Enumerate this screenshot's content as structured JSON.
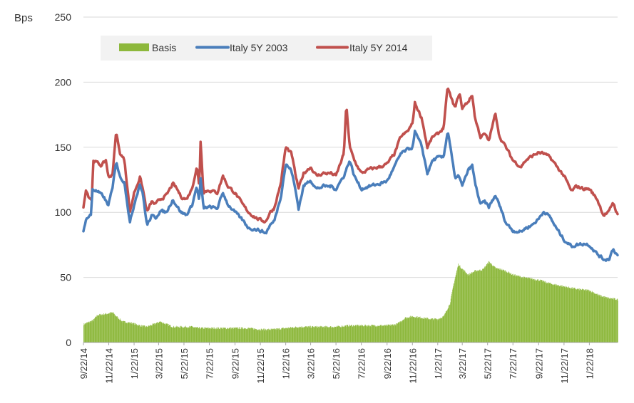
{
  "chart_data": {
    "type": "area",
    "y_unit_label": "Bps",
    "ylim": [
      0,
      250
    ],
    "y_ticks": [
      "0",
      "50",
      "100",
      "150",
      "200",
      "250"
    ],
    "x_tick_labels": [
      "9/22/14",
      "11/22/14",
      "1/22/15",
      "3/22/15",
      "5/22/15",
      "7/22/15",
      "9/22/15",
      "11/22/15",
      "1/22/16",
      "3/22/16",
      "5/22/16",
      "7/22/16",
      "9/22/16",
      "11/22/16",
      "1/22/17",
      "3/22/17",
      "5/22/17",
      "7/22/17",
      "9/22/17",
      "11/22/17",
      "1/22/18"
    ],
    "x_range": [
      "2014-09-22",
      "2018-03-31"
    ],
    "grid": "horizontal",
    "legend_position": "top-left",
    "series": [
      {
        "name": "Basis",
        "type": "bar",
        "color": "#8DB83C",
        "points": [
          [
            "2014-09-22",
            14
          ],
          [
            "2014-10-15",
            17
          ],
          [
            "2014-10-25",
            21
          ],
          [
            "2014-11-15",
            22
          ],
          [
            "2014-12-01",
            23
          ],
          [
            "2014-12-10",
            20
          ],
          [
            "2014-12-25",
            16
          ],
          [
            "2015-01-15",
            15
          ],
          [
            "2015-02-05",
            13
          ],
          [
            "2015-02-20",
            12
          ],
          [
            "2015-03-10",
            14
          ],
          [
            "2015-03-25",
            16
          ],
          [
            "2015-04-10",
            14
          ],
          [
            "2015-04-25",
            12
          ],
          [
            "2015-05-15",
            12
          ],
          [
            "2015-06-10",
            12
          ],
          [
            "2015-06-25",
            11
          ],
          [
            "2015-07-15",
            11
          ],
          [
            "2015-08-15",
            11
          ],
          [
            "2015-09-22",
            11
          ],
          [
            "2015-10-22",
            11
          ],
          [
            "2015-11-22",
            10
          ],
          [
            "2015-12-22",
            10
          ],
          [
            "2016-01-22",
            11
          ],
          [
            "2016-02-22",
            12
          ],
          [
            "2016-03-22",
            12
          ],
          [
            "2016-04-22",
            12
          ],
          [
            "2016-05-22",
            12
          ],
          [
            "2016-06-22",
            13
          ],
          [
            "2016-07-22",
            13
          ],
          [
            "2016-08-22",
            13
          ],
          [
            "2016-09-22",
            13
          ],
          [
            "2016-10-15",
            14
          ],
          [
            "2016-11-05",
            19
          ],
          [
            "2016-11-22",
            20
          ],
          [
            "2016-12-15",
            19
          ],
          [
            "2017-01-05",
            18
          ],
          [
            "2017-01-22",
            18
          ],
          [
            "2017-02-05",
            20
          ],
          [
            "2017-02-20",
            30
          ],
          [
            "2017-03-01",
            45
          ],
          [
            "2017-03-12",
            60
          ],
          [
            "2017-03-20",
            57
          ],
          [
            "2017-04-05",
            52
          ],
          [
            "2017-04-22",
            55
          ],
          [
            "2017-05-10",
            56
          ],
          [
            "2017-05-25",
            62
          ],
          [
            "2017-06-10",
            57
          ],
          [
            "2017-06-25",
            56
          ],
          [
            "2017-07-10",
            54
          ],
          [
            "2017-07-22",
            52
          ],
          [
            "2017-08-15",
            50
          ],
          [
            "2017-09-22",
            48
          ],
          [
            "2017-10-22",
            45
          ],
          [
            "2017-11-22",
            43
          ],
          [
            "2017-12-22",
            41
          ],
          [
            "2018-01-22",
            40
          ],
          [
            "2018-02-15",
            36
          ],
          [
            "2018-03-10",
            34
          ],
          [
            "2018-03-31",
            33
          ]
        ]
      },
      {
        "name": "Italy 5Y 2003",
        "type": "line",
        "color": "#4A7EBB",
        "points": [
          [
            "2014-09-22",
            85
          ],
          [
            "2014-09-28",
            95
          ],
          [
            "2014-10-10",
            98
          ],
          [
            "2014-10-14",
            118
          ],
          [
            "2014-10-25",
            116
          ],
          [
            "2014-11-10",
            112
          ],
          [
            "2014-11-20",
            105
          ],
          [
            "2014-12-01",
            118
          ],
          [
            "2014-12-10",
            140
          ],
          [
            "2014-12-18",
            128
          ],
          [
            "2014-12-30",
            123
          ],
          [
            "2015-01-12",
            92
          ],
          [
            "2015-01-25",
            110
          ],
          [
            "2015-02-05",
            122
          ],
          [
            "2015-02-12",
            114
          ],
          [
            "2015-02-22",
            90
          ],
          [
            "2015-03-05",
            97
          ],
          [
            "2015-03-15",
            96
          ],
          [
            "2015-03-25",
            101
          ],
          [
            "2015-04-10",
            100
          ],
          [
            "2015-04-25",
            110
          ],
          [
            "2015-05-05",
            105
          ],
          [
            "2015-05-15",
            100
          ],
          [
            "2015-05-28",
            98
          ],
          [
            "2015-06-10",
            105
          ],
          [
            "2015-06-22",
            120
          ],
          [
            "2015-06-28",
            108
          ],
          [
            "2015-07-01",
            126
          ],
          [
            "2015-07-08",
            103
          ],
          [
            "2015-07-22",
            104
          ],
          [
            "2015-08-10",
            103
          ],
          [
            "2015-08-24",
            115
          ],
          [
            "2015-09-05",
            106
          ],
          [
            "2015-09-22",
            100
          ],
          [
            "2015-10-10",
            94
          ],
          [
            "2015-10-25",
            88
          ],
          [
            "2015-11-10",
            87
          ],
          [
            "2015-11-22",
            86
          ],
          [
            "2015-12-05",
            84
          ],
          [
            "2015-12-15",
            90
          ],
          [
            "2015-12-25",
            93
          ],
          [
            "2016-01-10",
            112
          ],
          [
            "2016-01-22",
            137
          ],
          [
            "2016-02-05",
            132
          ],
          [
            "2016-02-15",
            116
          ],
          [
            "2016-02-22",
            103
          ],
          [
            "2016-03-05",
            120
          ],
          [
            "2016-03-22",
            125
          ],
          [
            "2016-04-05",
            118
          ],
          [
            "2016-04-22",
            120
          ],
          [
            "2016-05-10",
            120
          ],
          [
            "2016-05-22",
            118
          ],
          [
            "2016-06-10",
            128
          ],
          [
            "2016-06-24",
            140
          ],
          [
            "2016-07-05",
            128
          ],
          [
            "2016-07-22",
            118
          ],
          [
            "2016-08-10",
            120
          ],
          [
            "2016-09-05",
            122
          ],
          [
            "2016-09-22",
            124
          ],
          [
            "2016-10-10",
            135
          ],
          [
            "2016-10-25",
            145
          ],
          [
            "2016-11-10",
            148
          ],
          [
            "2016-11-22",
            150
          ],
          [
            "2016-11-28",
            162
          ],
          [
            "2016-12-15",
            150
          ],
          [
            "2016-12-28",
            130
          ],
          [
            "2017-01-10",
            140
          ],
          [
            "2017-01-22",
            142
          ],
          [
            "2017-02-05",
            142
          ],
          [
            "2017-02-15",
            163
          ],
          [
            "2017-02-22",
            150
          ],
          [
            "2017-03-05",
            125
          ],
          [
            "2017-03-15",
            128
          ],
          [
            "2017-03-22",
            120
          ],
          [
            "2017-04-05",
            132
          ],
          [
            "2017-04-15",
            136
          ],
          [
            "2017-04-22",
            122
          ],
          [
            "2017-05-05",
            106
          ],
          [
            "2017-05-15",
            108
          ],
          [
            "2017-05-25",
            104
          ],
          [
            "2017-06-10",
            113
          ],
          [
            "2017-06-20",
            105
          ],
          [
            "2017-07-05",
            92
          ],
          [
            "2017-07-22",
            86
          ],
          [
            "2017-08-10",
            85
          ],
          [
            "2017-08-22",
            88
          ],
          [
            "2017-09-05",
            90
          ],
          [
            "2017-09-22",
            95
          ],
          [
            "2017-10-05",
            101
          ],
          [
            "2017-10-20",
            96
          ],
          [
            "2017-11-05",
            87
          ],
          [
            "2017-11-22",
            79
          ],
          [
            "2017-12-10",
            74
          ],
          [
            "2017-12-22",
            75
          ],
          [
            "2018-01-10",
            76
          ],
          [
            "2018-01-22",
            75
          ],
          [
            "2018-02-10",
            68
          ],
          [
            "2018-02-25",
            64
          ],
          [
            "2018-03-10",
            64
          ],
          [
            "2018-03-20",
            72
          ],
          [
            "2018-03-31",
            67
          ]
        ]
      },
      {
        "name": "Italy 5Y 2014",
        "type": "line",
        "color": "#C0504D",
        "points": [
          [
            "2014-09-22",
            103
          ],
          [
            "2014-09-28",
            118
          ],
          [
            "2014-10-05",
            112
          ],
          [
            "2014-10-12",
            110
          ],
          [
            "2014-10-16",
            140
          ],
          [
            "2014-10-25",
            138
          ],
          [
            "2014-11-05",
            136
          ],
          [
            "2014-11-15",
            140
          ],
          [
            "2014-11-22",
            126
          ],
          [
            "2014-12-01",
            130
          ],
          [
            "2014-12-10",
            162
          ],
          [
            "2014-12-18",
            146
          ],
          [
            "2014-12-30",
            140
          ],
          [
            "2015-01-12",
            100
          ],
          [
            "2015-01-22",
            115
          ],
          [
            "2015-02-05",
            127
          ],
          [
            "2015-02-12",
            118
          ],
          [
            "2015-02-22",
            100
          ],
          [
            "2015-03-05",
            108
          ],
          [
            "2015-03-15",
            106
          ],
          [
            "2015-03-25",
            110
          ],
          [
            "2015-04-10",
            113
          ],
          [
            "2015-04-25",
            122
          ],
          [
            "2015-05-05",
            118
          ],
          [
            "2015-05-15",
            112
          ],
          [
            "2015-05-28",
            110
          ],
          [
            "2015-06-10",
            118
          ],
          [
            "2015-06-22",
            135
          ],
          [
            "2015-06-28",
            120
          ],
          [
            "2015-07-01",
            155
          ],
          [
            "2015-07-08",
            116
          ],
          [
            "2015-07-22",
            117
          ],
          [
            "2015-08-10",
            115
          ],
          [
            "2015-08-24",
            128
          ],
          [
            "2015-09-05",
            120
          ],
          [
            "2015-09-22",
            115
          ],
          [
            "2015-10-10",
            106
          ],
          [
            "2015-10-25",
            100
          ],
          [
            "2015-11-10",
            96
          ],
          [
            "2015-11-22",
            94
          ],
          [
            "2015-12-05",
            93
          ],
          [
            "2015-12-15",
            100
          ],
          [
            "2015-12-25",
            103
          ],
          [
            "2016-01-10",
            122
          ],
          [
            "2016-01-22",
            150
          ],
          [
            "2016-02-05",
            145
          ],
          [
            "2016-02-15",
            128
          ],
          [
            "2016-02-22",
            118
          ],
          [
            "2016-03-05",
            130
          ],
          [
            "2016-03-22",
            135
          ],
          [
            "2016-04-05",
            128
          ],
          [
            "2016-04-22",
            130
          ],
          [
            "2016-05-10",
            130
          ],
          [
            "2016-05-22",
            128
          ],
          [
            "2016-06-10",
            145
          ],
          [
            "2016-06-16",
            183
          ],
          [
            "2016-06-24",
            150
          ],
          [
            "2016-07-05",
            140
          ],
          [
            "2016-07-22",
            130
          ],
          [
            "2016-08-10",
            133
          ],
          [
            "2016-09-05",
            135
          ],
          [
            "2016-09-22",
            137
          ],
          [
            "2016-10-10",
            145
          ],
          [
            "2016-10-25",
            158
          ],
          [
            "2016-11-10",
            162
          ],
          [
            "2016-11-22",
            168
          ],
          [
            "2016-11-28",
            184
          ],
          [
            "2016-12-15",
            172
          ],
          [
            "2016-12-28",
            150
          ],
          [
            "2017-01-10",
            158
          ],
          [
            "2017-01-22",
            160
          ],
          [
            "2017-02-05",
            165
          ],
          [
            "2017-02-15",
            196
          ],
          [
            "2017-02-25",
            186
          ],
          [
            "2017-03-05",
            180
          ],
          [
            "2017-03-15",
            192
          ],
          [
            "2017-03-22",
            180
          ],
          [
            "2017-04-05",
            185
          ],
          [
            "2017-04-15",
            190
          ],
          [
            "2017-04-22",
            172
          ],
          [
            "2017-05-05",
            158
          ],
          [
            "2017-05-15",
            160
          ],
          [
            "2017-05-25",
            155
          ],
          [
            "2017-06-10",
            176
          ],
          [
            "2017-06-20",
            158
          ],
          [
            "2017-07-05",
            150
          ],
          [
            "2017-07-22",
            140
          ],
          [
            "2017-08-10",
            135
          ],
          [
            "2017-08-22",
            140
          ],
          [
            "2017-09-05",
            143
          ],
          [
            "2017-09-22",
            146
          ],
          [
            "2017-10-05",
            145
          ],
          [
            "2017-10-20",
            142
          ],
          [
            "2017-11-05",
            135
          ],
          [
            "2017-11-22",
            128
          ],
          [
            "2017-12-10",
            116
          ],
          [
            "2017-12-22",
            120
          ],
          [
            "2018-01-10",
            118
          ],
          [
            "2018-01-22",
            118
          ],
          [
            "2018-02-10",
            110
          ],
          [
            "2018-02-25",
            98
          ],
          [
            "2018-03-10",
            100
          ],
          [
            "2018-03-20",
            108
          ],
          [
            "2018-03-31",
            98
          ]
        ]
      }
    ]
  }
}
